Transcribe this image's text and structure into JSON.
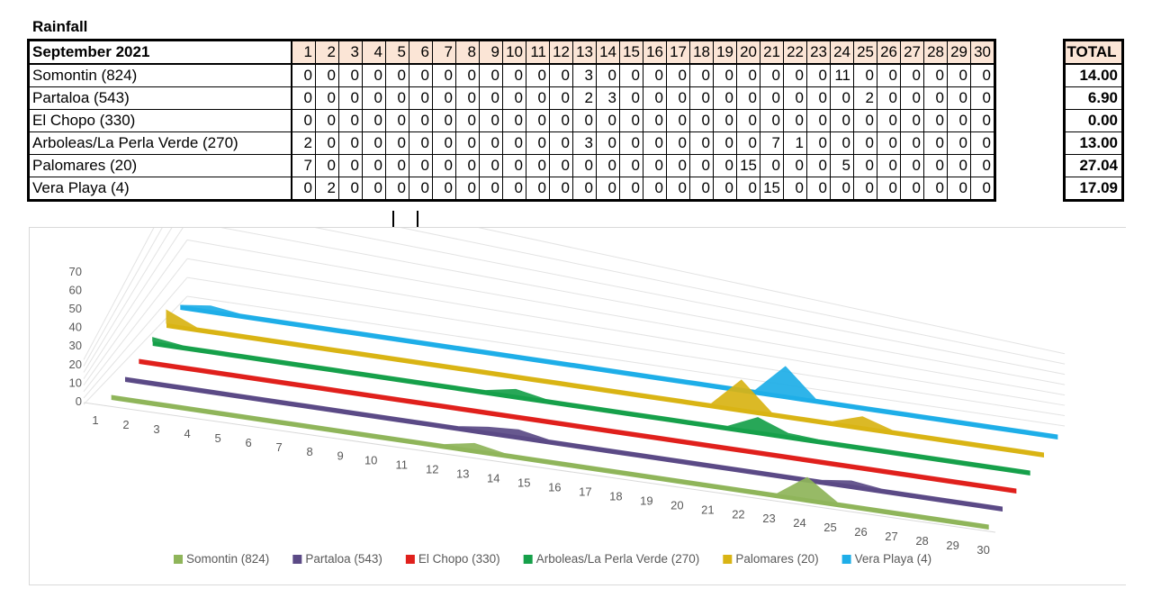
{
  "title": "Rainfall",
  "table": {
    "header": "September 2021",
    "total_header": "TOTAL",
    "days": [
      "1",
      "2",
      "3",
      "4",
      "5",
      "6",
      "7",
      "8",
      "9",
      "10",
      "11",
      "12",
      "13",
      "14",
      "15",
      "16",
      "17",
      "18",
      "19",
      "20",
      "21",
      "22",
      "23",
      "24",
      "25",
      "26",
      "27",
      "28",
      "29",
      "30"
    ],
    "rows": [
      {
        "name": "Somontin (824)",
        "values": [
          0,
          0,
          0,
          0,
          0,
          0,
          0,
          0,
          0,
          0,
          0,
          0,
          3,
          0,
          0,
          0,
          0,
          0,
          0,
          0,
          0,
          0,
          0,
          11,
          0,
          0,
          0,
          0,
          0,
          0
        ],
        "total": "14.00"
      },
      {
        "name": "Partaloa (543)",
        "values": [
          0,
          0,
          0,
          0,
          0,
          0,
          0,
          0,
          0,
          0,
          0,
          0,
          2,
          3,
          0,
          0,
          0,
          0,
          0,
          0,
          0,
          0,
          0,
          0,
          2,
          0,
          0,
          0,
          0,
          0
        ],
        "total": "6.90"
      },
      {
        "name": "El Chopo (330)",
        "values": [
          0,
          0,
          0,
          0,
          0,
          0,
          0,
          0,
          0,
          0,
          0,
          0,
          0,
          0,
          0,
          0,
          0,
          0,
          0,
          0,
          0,
          0,
          0,
          0,
          0,
          0,
          0,
          0,
          0,
          0
        ],
        "total": "0.00"
      },
      {
        "name": "Arboleas/La Perla Verde (270)",
        "values": [
          2,
          0,
          0,
          0,
          0,
          0,
          0,
          0,
          0,
          0,
          0,
          0,
          3,
          0,
          0,
          0,
          0,
          0,
          0,
          0,
          7,
          1,
          0,
          0,
          0,
          0,
          0,
          0,
          0,
          0
        ],
        "total": "13.00"
      },
      {
        "name": "Palomares (20)",
        "values": [
          7,
          0,
          0,
          0,
          0,
          0,
          0,
          0,
          0,
          0,
          0,
          0,
          0,
          0,
          0,
          0,
          0,
          0,
          0,
          15,
          0,
          0,
          0,
          5,
          0,
          0,
          0,
          0,
          0,
          0
        ],
        "total": "27.04"
      },
      {
        "name": "Vera Playa (4)",
        "values": [
          0,
          2,
          0,
          0,
          0,
          0,
          0,
          0,
          0,
          0,
          0,
          0,
          0,
          0,
          0,
          0,
          0,
          0,
          0,
          0,
          15,
          0,
          0,
          0,
          0,
          0,
          0,
          0,
          0,
          0
        ],
        "total": "17.09"
      }
    ]
  },
  "chart_data": {
    "type": "area",
    "x": [
      "1",
      "2",
      "3",
      "4",
      "5",
      "6",
      "7",
      "8",
      "9",
      "10",
      "11",
      "12",
      "13",
      "14",
      "15",
      "16",
      "17",
      "18",
      "19",
      "20",
      "21",
      "22",
      "23",
      "24",
      "25",
      "26",
      "27",
      "28",
      "29",
      "30"
    ],
    "yticks": [
      "0",
      "10",
      "20",
      "30",
      "40",
      "50",
      "60",
      "70"
    ],
    "ylim": [
      0,
      70
    ],
    "grid": true,
    "legend": "bottom",
    "series": [
      {
        "name": "Somontin (824)",
        "color": "#8fb55a",
        "values": [
          0,
          0,
          0,
          0,
          0,
          0,
          0,
          0,
          0,
          0,
          0,
          0,
          3,
          0,
          0,
          0,
          0,
          0,
          0,
          0,
          0,
          0,
          0,
          11,
          0,
          0,
          0,
          0,
          0,
          0
        ]
      },
      {
        "name": "Partaloa (543)",
        "color": "#5b4a86",
        "values": [
          0,
          0,
          0,
          0,
          0,
          0,
          0,
          0,
          0,
          0,
          0,
          0,
          2,
          3,
          0,
          0,
          0,
          0,
          0,
          0,
          0,
          0,
          0,
          0,
          2,
          0,
          0,
          0,
          0,
          0
        ]
      },
      {
        "name": "El Chopo (330)",
        "color": "#e0201c",
        "values": [
          0,
          0,
          0,
          0,
          0,
          0,
          0,
          0,
          0,
          0,
          0,
          0,
          0,
          0,
          0,
          0,
          0,
          0,
          0,
          0,
          0,
          0,
          0,
          0,
          0,
          0,
          0,
          0,
          0,
          0
        ]
      },
      {
        "name": "Arboleas/La Perla Verde (270)",
        "color": "#16a04a",
        "values": [
          2,
          0,
          0,
          0,
          0,
          0,
          0,
          0,
          0,
          0,
          0,
          0,
          3,
          0,
          0,
          0,
          0,
          0,
          0,
          0,
          7,
          1,
          0,
          0,
          0,
          0,
          0,
          0,
          0,
          0
        ]
      },
      {
        "name": "Palomares (20)",
        "color": "#d9b414",
        "values": [
          7,
          0,
          0,
          0,
          0,
          0,
          0,
          0,
          0,
          0,
          0,
          0,
          0,
          0,
          0,
          0,
          0,
          0,
          0,
          15,
          0,
          0,
          0,
          5,
          0,
          0,
          0,
          0,
          0,
          0
        ]
      },
      {
        "name": "Vera Playa (4)",
        "color": "#1eaee8",
        "values": [
          0,
          2,
          0,
          0,
          0,
          0,
          0,
          0,
          0,
          0,
          0,
          0,
          0,
          0,
          0,
          0,
          0,
          0,
          0,
          0,
          15,
          0,
          0,
          0,
          0,
          0,
          0,
          0,
          0,
          0
        ]
      }
    ]
  }
}
